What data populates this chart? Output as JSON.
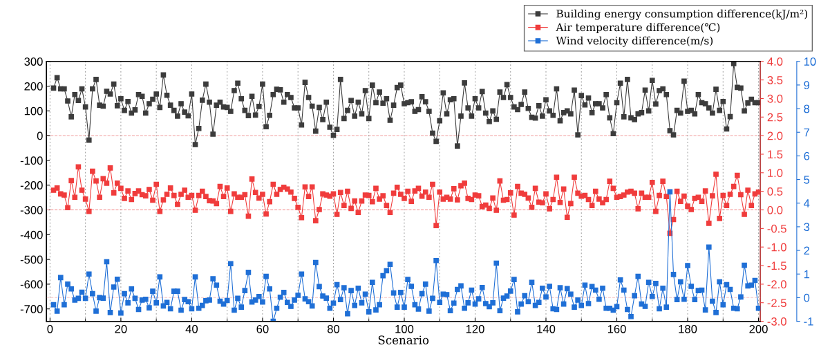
{
  "chart_data": {
    "type": "line",
    "xlabel": "Scenario",
    "legend": "top right",
    "marker": "square",
    "line_style": "solid",
    "grid": "x",
    "xlim": [
      -1,
      200.5
    ],
    "xticks": [
      0,
      20,
      40,
      60,
      80,
      100,
      120,
      140,
      160,
      180,
      200
    ],
    "ylim": [
      -750,
      300
    ],
    "yticks": [
      -700,
      -600,
      -500,
      -400,
      -300,
      -200,
      -100,
      0,
      100,
      200,
      300
    ],
    "y2lim": [
      -3,
      4
    ],
    "y2ticks": [
      {
        "value": -3,
        "label": "-3.0"
      },
      {
        "value": -2.5,
        "label": "-2.5"
      },
      {
        "value": -2,
        "label": "-2.0"
      },
      {
        "value": -1.5,
        "label": "-1.5"
      },
      {
        "value": -1,
        "label": "-1.0"
      },
      {
        "value": -0.5,
        "label": "-0.5"
      },
      {
        "value": 0,
        "label": "0.0"
      },
      {
        "value": 0.5,
        "label": "0.5"
      },
      {
        "value": 1,
        "label": "1.0"
      },
      {
        "value": 1.5,
        "label": "1.5"
      },
      {
        "value": 2,
        "label": "2.0"
      },
      {
        "value": 2.5,
        "label": "2.5"
      },
      {
        "value": 3,
        "label": "3.0"
      },
      {
        "value": 3.5,
        "label": "3.5"
      },
      {
        "value": 4,
        "label": "4.0"
      }
    ],
    "y3lim": [
      -1,
      10
    ],
    "y3ticks": [
      -1,
      0,
      1,
      2,
      3,
      4,
      5,
      6,
      7,
      8,
      9,
      10
    ],
    "ref_lines": [
      {
        "axis": "y",
        "value": 0,
        "color": "#f4b0b0",
        "line_style": "dashed"
      },
      {
        "axis": "y2",
        "value": 0,
        "color": "#f08080",
        "line_style": "dashed"
      },
      {
        "axis": "y3",
        "value": 0,
        "color": "#f8d0d0",
        "line_style": "dashed"
      }
    ],
    "x": [
      1,
      2,
      3,
      4,
      5,
      6,
      7,
      8,
      9,
      10,
      11,
      12,
      13,
      14,
      15,
      16,
      17,
      18,
      19,
      20,
      21,
      22,
      23,
      24,
      25,
      26,
      27,
      28,
      29,
      30,
      31,
      32,
      33,
      34,
      35,
      36,
      37,
      38,
      39,
      40,
      41,
      42,
      43,
      44,
      45,
      46,
      47,
      48,
      49,
      50,
      51,
      52,
      53,
      54,
      55,
      56,
      57,
      58,
      59,
      60,
      61,
      62,
      63,
      64,
      65,
      66,
      67,
      68,
      69,
      70,
      71,
      72,
      73,
      74,
      75,
      76,
      77,
      78,
      79,
      80,
      81,
      82,
      83,
      84,
      85,
      86,
      87,
      88,
      89,
      90,
      91,
      92,
      93,
      94,
      95,
      96,
      97,
      98,
      99,
      100,
      101,
      102,
      103,
      104,
      105,
      106,
      107,
      108,
      109,
      110,
      111,
      112,
      113,
      114,
      115,
      116,
      117,
      118,
      119,
      120,
      121,
      122,
      123,
      124,
      125,
      126,
      127,
      128,
      129,
      130,
      131,
      132,
      133,
      134,
      135,
      136,
      137,
      138,
      139,
      140,
      141,
      142,
      143,
      144,
      145,
      146,
      147,
      148,
      149,
      150,
      151,
      152,
      153,
      154,
      155,
      156,
      157,
      158,
      159,
      160,
      161,
      162,
      163,
      164,
      165,
      166,
      167,
      168,
      169,
      170,
      171,
      172,
      173,
      174,
      175,
      176,
      177,
      178,
      179,
      180,
      181,
      182,
      183,
      184,
      185,
      186,
      187,
      188,
      189,
      190,
      191,
      192,
      193,
      194,
      195,
      196,
      197,
      198,
      199,
      200
    ],
    "series": [
      {
        "name": "Building energy consumption difference(kJ/m²)",
        "color": "#3c3c3c",
        "axis": "y",
        "values": [
          192,
          234,
          189,
          189,
          140,
          76,
          166,
          142,
          189,
          116,
          -18,
          189,
          227,
          123,
          119,
          179,
          168,
          208,
          121,
          149,
          102,
          138,
          91,
          104,
          166,
          159,
          91,
          129,
          147,
          168,
          114,
          245,
          163,
          123,
          102,
          79,
          129,
          95,
          80,
          168,
          -36,
          29,
          143,
          208,
          135,
          6,
          123,
          135,
          116,
          114,
          98,
          182,
          212,
          149,
          102,
          81,
          159,
          83,
          118,
          208,
          36,
          82,
          166,
          187,
          185,
          135,
          166,
          154,
          112,
          112,
          43,
          215,
          154,
          119,
          18,
          114,
          65,
          135,
          34,
          1,
          25,
          227,
          69,
          102,
          142,
          79,
          135,
          88,
          182,
          69,
          204,
          133,
          176,
          131,
          149,
          62,
          123,
          194,
          204,
          129,
          133,
          137,
          98,
          105,
          157,
          137,
          98,
          10,
          -23,
          60,
          173,
          88,
          145,
          149,
          -42,
          79,
          213,
          112,
          79,
          149,
          112,
          178,
          91,
          57,
          100,
          66,
          176,
          154,
          206,
          154,
          116,
          105,
          126,
          176,
          110,
          74,
          71,
          121,
          79,
          145,
          100,
          82,
          189,
          60,
          93,
          100,
          88,
          184,
          3,
          162,
          124,
          152,
          93,
          129,
          129,
          112,
          166,
          72,
          8,
          133,
          212,
          76,
          227,
          72,
          65,
          88,
          93,
          184,
          100,
          223,
          128,
          182,
          189,
          166,
          20,
          3,
          102,
          91,
          220,
          98,
          102,
          88,
          166,
          133,
          129,
          112,
          91,
          187,
          102,
          138,
          27,
          77,
          291,
          195,
          192,
          100,
          132,
          147,
          133,
          133
        ]
      },
      {
        "name": "Air temperature difference(℃)",
        "color": "#f03c3c",
        "axis": "y2",
        "values": [
          0.53,
          0.59,
          0.43,
          0.4,
          0.06,
          0.79,
          0.34,
          1.16,
          0.53,
          0.29,
          -0.04,
          1.04,
          0.78,
          0.34,
          0.84,
          0.72,
          1.13,
          0.46,
          0.72,
          0.58,
          0.31,
          0.51,
          0.28,
          0.44,
          0.51,
          0.41,
          0.38,
          0.55,
          0.26,
          0.69,
          -0.04,
          0.27,
          0.42,
          0.59,
          0.39,
          0.15,
          0.42,
          0.53,
          0.34,
          0.39,
          -0.01,
          0.39,
          0.5,
          0.36,
          0.25,
          0.24,
          0.17,
          0.63,
          0.36,
          0.59,
          -0.04,
          0.43,
          0.34,
          0.34,
          0.41,
          -0.17,
          0.83,
          0.47,
          0.32,
          0.42,
          -0.11,
          0.22,
          0.69,
          0.42,
          0.55,
          0.61,
          0.56,
          0.48,
          0.31,
          0.07,
          -0.21,
          0.62,
          0.36,
          0.62,
          -0.29,
          0.01,
          0.43,
          0.4,
          0.37,
          0.43,
          -0.12,
          0.47,
          0.12,
          0.5,
          0.04,
          0.24,
          -0.07,
          0.24,
          0.4,
          0.39,
          0.22,
          0.58,
          0.29,
          0.38,
          0.12,
          -0.07,
          0.45,
          0.61,
          0.42,
          0.31,
          0.5,
          0.23,
          0.51,
          0.58,
          0.37,
          0.48,
          0.34,
          0.69,
          -0.42,
          0.48,
          0.29,
          0.34,
          0.29,
          0.57,
          0.27,
          0.65,
          0.72,
          0.31,
          0.28,
          0.4,
          0.38,
          0.09,
          0.13,
          0.04,
          0.32,
          -0.01,
          0.78,
          0.26,
          0.28,
          0.46,
          -0.14,
          0.63,
          0.45,
          0.42,
          0.32,
          0.07,
          0.58,
          0.21,
          0.19,
          0.43,
          0.03,
          0.28,
          0.88,
          0.2,
          0.56,
          -0.2,
          0.17,
          0.88,
          0.45,
          0.37,
          0.39,
          0.28,
          0.12,
          0.5,
          0.29,
          0.19,
          0.28,
          0.77,
          0.58,
          0.34,
          0.36,
          0.4,
          0.48,
          0.5,
          0.45,
          0.03,
          0.45,
          0.34,
          0.34,
          0.74,
          -0.04,
          0.39,
          0.77,
          0.36,
          -0.63,
          -0.26,
          0.5,
          0.23,
          0.37,
          0.1,
          0.01,
          0.31,
          0.34,
          0.23,
          0.51,
          -0.36,
          0.38,
          0.96,
          -0.23,
          0.39,
          0.12,
          0.42,
          0.63,
          0.93,
          0.41,
          -0.12,
          0.53,
          0.12,
          0.43,
          0.48
        ]
      },
      {
        "name": "Wind velocity difference(m/s)",
        "color": "#1f6fd6",
        "axis": "y3",
        "values": [
          -0.3,
          -0.57,
          0.85,
          -0.3,
          0.57,
          0.37,
          -0.1,
          -0.03,
          0.23,
          -0.03,
          1.0,
          0.17,
          -0.57,
          0.0,
          -0.02,
          1.52,
          -0.63,
          0.45,
          0.78,
          -0.65,
          0.17,
          -0.22,
          0.37,
          -0.03,
          -0.5,
          -0.1,
          -0.07,
          -0.43,
          0.27,
          -0.22,
          0.88,
          -0.35,
          -0.2,
          -0.47,
          0.27,
          0.27,
          -0.53,
          -0.08,
          -0.17,
          -0.47,
          0.88,
          -0.45,
          -0.33,
          -0.13,
          -0.1,
          0.8,
          0.53,
          -0.15,
          -0.27,
          -0.12,
          1.44,
          -0.53,
          -0.03,
          -0.4,
          0.3,
          1.07,
          -0.18,
          -0.1,
          0.05,
          -0.18,
          0.9,
          0.37,
          -1.0,
          -0.45,
          0.02,
          0.22,
          -0.2,
          -0.37,
          -0.1,
          0.1,
          1.0,
          -0.05,
          -0.17,
          -0.35,
          1.49,
          0.47,
          0.07,
          -0.02,
          -0.45,
          -0.23,
          0.55,
          -0.08,
          0.42,
          -0.68,
          0.3,
          -0.33,
          0.4,
          -0.22,
          0.15,
          -0.6,
          0.65,
          -0.52,
          -0.3,
          0.93,
          1.14,
          1.41,
          0.2,
          -0.4,
          0.22,
          -0.4,
          0.77,
          0.48,
          -0.3,
          -0.48,
          0.17,
          0.57,
          -0.57,
          -0.03,
          1.57,
          -0.2,
          0.15,
          0.13,
          -0.55,
          -0.23,
          0.35,
          0.5,
          -0.45,
          -0.22,
          0.32,
          -0.27,
          -0.05,
          0.43,
          -0.25,
          -0.38,
          -0.22,
          1.46,
          -0.55,
          -0.02,
          0.07,
          0.28,
          0.77,
          -0.6,
          -0.27,
          0.08,
          -0.17,
          0.65,
          -0.33,
          -0.2,
          0.4,
          0.03,
          0.48,
          -0.47,
          -0.5,
          0.42,
          -0.27,
          0.38,
          0.15,
          -0.4,
          -0.1,
          -0.33,
          0.53,
          -0.25,
          0.47,
          0.32,
          -0.07,
          0.4,
          -0.45,
          -0.45,
          -0.53,
          -0.38,
          0.75,
          0.32,
          -0.5,
          -0.8,
          0.08,
          0.9,
          -0.27,
          -0.37,
          0.65,
          0.05,
          0.6,
          -0.47,
          0.4,
          -0.4,
          4.48,
          0.98,
          -0.08,
          0.67,
          -0.07,
          1.36,
          0.48,
          -0.08,
          0.3,
          0.32,
          -0.52,
          2.14,
          -0.15,
          -0.63,
          0.67,
          -0.3,
          0.55,
          0.35,
          -0.45,
          -0.47,
          0.03,
          1.37,
          0.5,
          0.53,
          0.73,
          -0.45
        ]
      }
    ]
  }
}
